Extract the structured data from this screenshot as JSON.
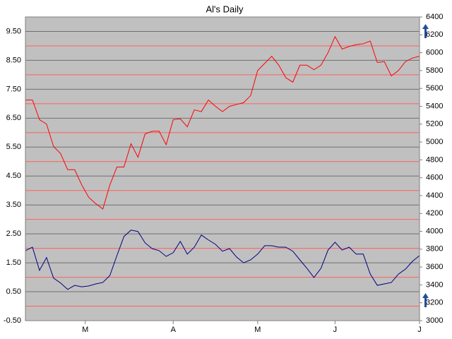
{
  "chart_data": {
    "type": "line",
    "title": "Al's Daily",
    "x": [
      0,
      2,
      4,
      6,
      8,
      10,
      12,
      14,
      16,
      18,
      20,
      22,
      24,
      26,
      28,
      30,
      32,
      34,
      36,
      38,
      40,
      42,
      44,
      46,
      48,
      50,
      52,
      54,
      56,
      58,
      60,
      62,
      64,
      66,
      68,
      70,
      72,
      74,
      76,
      78,
      80,
      82,
      84,
      86,
      88,
      90,
      92,
      94,
      96,
      98,
      100,
      102,
      104,
      106,
      108,
      110,
      112
    ],
    "xlim": [
      0,
      112
    ],
    "xticks": [
      {
        "value": 17,
        "label": "M"
      },
      {
        "value": 42,
        "label": "A"
      },
      {
        "value": 66,
        "label": "M"
      },
      {
        "value": 88,
        "label": "J"
      },
      {
        "value": 112,
        "label": "J"
      }
    ],
    "ylim": [
      -0.5,
      10
    ],
    "yticks": [
      {
        "value": -0.5,
        "label": "-0.50"
      },
      {
        "value": 0.5,
        "label": "0.50"
      },
      {
        "value": 1.5,
        "label": "1.50"
      },
      {
        "value": 2.5,
        "label": "2.50"
      },
      {
        "value": 3.5,
        "label": "3.50"
      },
      {
        "value": 4.5,
        "label": "4.50"
      },
      {
        "value": 5.5,
        "label": "5.50"
      },
      {
        "value": 6.5,
        "label": "6.50"
      },
      {
        "value": 7.5,
        "label": "7.50"
      },
      {
        "value": 8.5,
        "label": "8.50"
      },
      {
        "value": 9.5,
        "label": "9.50"
      }
    ],
    "yminor_ticks": [
      0,
      1,
      2,
      3,
      4,
      5,
      6,
      7,
      8,
      9
    ],
    "y2lim": [
      3000,
      6400
    ],
    "y2ticks": [
      3000,
      3200,
      3400,
      3600,
      3800,
      4000,
      4200,
      4400,
      4600,
      4800,
      5000,
      5200,
      5400,
      5600,
      5800,
      6000,
      6200,
      6400
    ],
    "grid": true,
    "series": [
      {
        "color": "#ff0000",
        "axis": "y2",
        "values": [
          5470,
          5470,
          5250,
          5200,
          4950,
          4870,
          4690,
          4690,
          4520,
          4380,
          4310,
          4250,
          4520,
          4720,
          4720,
          4980,
          4830,
          5090,
          5120,
          5120,
          4970,
          5250,
          5260,
          5170,
          5360,
          5340,
          5470,
          5400,
          5340,
          5400,
          5420,
          5440,
          5520,
          5800,
          5880,
          5960,
          5860,
          5720,
          5670,
          5860,
          5860,
          5810,
          5860,
          6000,
          6180,
          6040,
          6070,
          6090,
          6100,
          6130,
          5890,
          5900,
          5740,
          5800,
          5900,
          5940,
          5960
        ]
      },
      {
        "color": "#000080",
        "values": [
          1.92,
          2.04,
          1.24,
          1.68,
          0.97,
          0.8,
          0.58,
          0.72,
          0.67,
          0.7,
          0.77,
          0.82,
          1.06,
          1.75,
          2.41,
          2.63,
          2.58,
          2.19,
          1.99,
          1.92,
          1.72,
          1.85,
          2.24,
          1.8,
          2.04,
          2.46,
          2.29,
          2.14,
          1.9,
          1.99,
          1.7,
          1.5,
          1.6,
          1.8,
          2.09,
          2.09,
          2.04,
          2.04,
          1.9,
          1.6,
          1.31,
          0.99,
          1.31,
          1.94,
          2.21,
          1.94,
          2.04,
          1.8,
          1.8,
          1.11,
          0.72,
          0.77,
          0.82,
          1.11,
          1.28,
          1.55,
          1.75
        ]
      }
    ]
  }
}
